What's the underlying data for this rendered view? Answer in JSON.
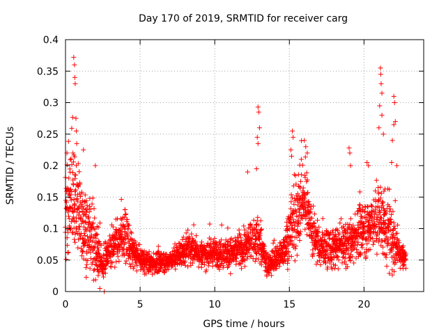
{
  "chart_data": {
    "type": "scatter",
    "title": "Day 170 of 2019, SRMTID for receiver carg",
    "xlabel": "GPS time / hours",
    "ylabel": "SRMTID / TECUs",
    "xlim": [
      0,
      24
    ],
    "ylim": [
      0,
      0.4
    ],
    "x_ticks": [
      0,
      5,
      10,
      15,
      20
    ],
    "x_tick_labels": [
      "0",
      "5",
      "10",
      "15",
      "20"
    ],
    "y_ticks": [
      0,
      0.05,
      0.1,
      0.15,
      0.2,
      0.25,
      0.3,
      0.35,
      0.4
    ],
    "y_tick_labels": [
      "0",
      "0.05",
      "0.1",
      "0.15",
      "0.2",
      "0.25",
      "0.3",
      "0.35",
      "0.4"
    ],
    "grid": true,
    "marker": "+",
    "marker_color": "#ff0000",
    "x_end": 22.8,
    "envelope": [
      [
        0.0,
        0.12,
        0.06
      ],
      [
        0.5,
        0.15,
        0.08
      ],
      [
        1.0,
        0.12,
        0.07
      ],
      [
        1.5,
        0.09,
        0.05
      ],
      [
        2.0,
        0.07,
        0.04
      ],
      [
        2.5,
        0.04,
        0.02
      ],
      [
        3.0,
        0.07,
        0.03
      ],
      [
        3.5,
        0.08,
        0.03
      ],
      [
        4.0,
        0.09,
        0.035
      ],
      [
        4.5,
        0.06,
        0.02
      ],
      [
        5.0,
        0.05,
        0.015
      ],
      [
        6.0,
        0.045,
        0.015
      ],
      [
        7.0,
        0.05,
        0.015
      ],
      [
        8.0,
        0.065,
        0.02
      ],
      [
        8.5,
        0.07,
        0.02
      ],
      [
        9.0,
        0.06,
        0.02
      ],
      [
        10.0,
        0.06,
        0.02
      ],
      [
        11.0,
        0.06,
        0.02
      ],
      [
        12.0,
        0.07,
        0.025
      ],
      [
        12.5,
        0.08,
        0.03
      ],
      [
        13.0,
        0.08,
        0.03
      ],
      [
        13.5,
        0.04,
        0.015
      ],
      [
        14.0,
        0.05,
        0.02
      ],
      [
        14.5,
        0.06,
        0.02
      ],
      [
        15.0,
        0.09,
        0.04
      ],
      [
        15.5,
        0.12,
        0.05
      ],
      [
        16.0,
        0.15,
        0.05
      ],
      [
        16.5,
        0.1,
        0.04
      ],
      [
        17.0,
        0.07,
        0.025
      ],
      [
        18.0,
        0.065,
        0.025
      ],
      [
        19.0,
        0.08,
        0.03
      ],
      [
        20.0,
        0.1,
        0.04
      ],
      [
        21.0,
        0.12,
        0.05
      ],
      [
        21.5,
        0.1,
        0.05
      ],
      [
        22.0,
        0.08,
        0.04
      ],
      [
        22.5,
        0.06,
        0.02
      ],
      [
        22.8,
        0.05,
        0.015
      ]
    ],
    "spikes": [
      [
        0.55,
        0.372
      ],
      [
        0.6,
        0.36
      ],
      [
        0.62,
        0.34
      ],
      [
        0.65,
        0.33
      ],
      [
        0.7,
        0.275
      ],
      [
        0.72,
        0.255
      ],
      [
        0.75,
        0.235
      ],
      [
        0.5,
        0.22
      ],
      [
        1.2,
        0.225
      ],
      [
        2.0,
        0.2
      ],
      [
        0.1,
        0.22
      ],
      [
        12.9,
        0.293
      ],
      [
        12.95,
        0.285
      ],
      [
        13.0,
        0.26
      ],
      [
        12.85,
        0.245
      ],
      [
        12.9,
        0.235
      ],
      [
        12.8,
        0.195
      ],
      [
        12.2,
        0.19
      ],
      [
        15.2,
        0.255
      ],
      [
        15.25,
        0.245
      ],
      [
        15.1,
        0.225
      ],
      [
        15.15,
        0.215
      ],
      [
        16.0,
        0.24
      ],
      [
        16.1,
        0.23
      ],
      [
        16.2,
        0.22
      ],
      [
        15.8,
        0.21
      ],
      [
        19.0,
        0.228
      ],
      [
        19.05,
        0.22
      ],
      [
        19.1,
        0.2
      ],
      [
        20.2,
        0.205
      ],
      [
        20.3,
        0.2
      ],
      [
        21.1,
        0.355
      ],
      [
        21.12,
        0.345
      ],
      [
        21.15,
        0.33
      ],
      [
        21.2,
        0.315
      ],
      [
        21.05,
        0.295
      ],
      [
        21.2,
        0.28
      ],
      [
        21.0,
        0.26
      ],
      [
        21.3,
        0.25
      ],
      [
        22.0,
        0.31
      ],
      [
        22.05,
        0.3
      ],
      [
        22.1,
        0.27
      ],
      [
        22.0,
        0.265
      ],
      [
        21.9,
        0.24
      ],
      [
        21.85,
        0.205
      ],
      [
        22.2,
        0.2
      ],
      [
        2.6,
        0.0
      ],
      [
        2.3,
        0.005
      ]
    ],
    "sample_step_hours": 0.025
  }
}
